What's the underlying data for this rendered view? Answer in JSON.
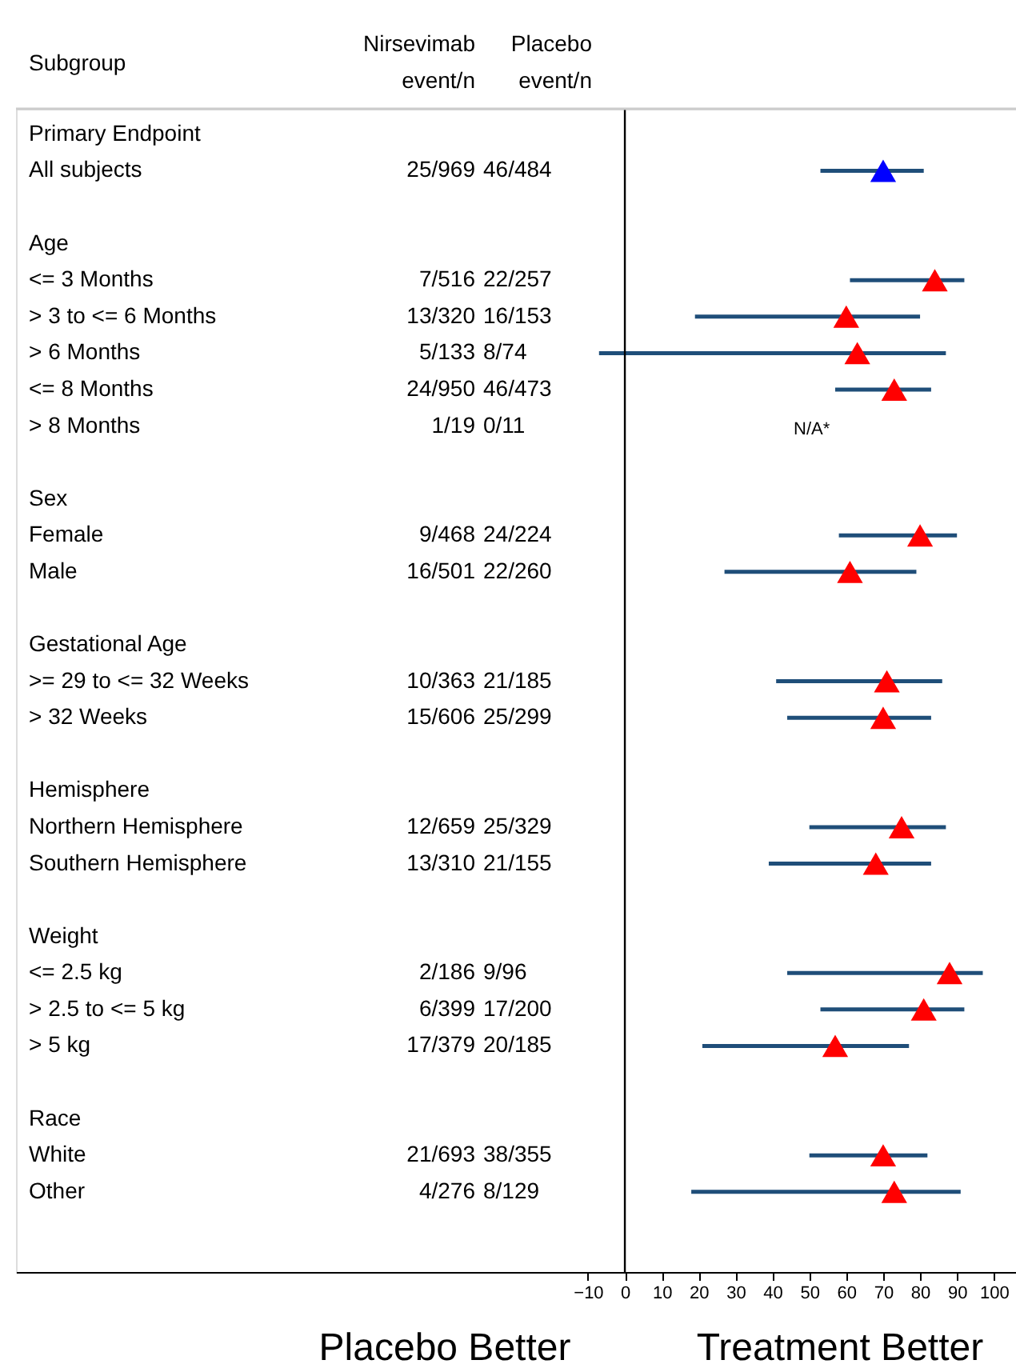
{
  "chart_data": {
    "type": "scatter",
    "orientation": "horizontal",
    "ylabel": "Subgroup",
    "categories": [
      "Primary Endpoint",
      "All subjects",
      null,
      "Age",
      "<= 3 Months",
      "> 3 to <= 6 Months",
      "> 6 Months",
      "<= 8 Months",
      "> 8 Months",
      null,
      "Sex",
      "Female",
      "Male",
      null,
      "Gestational Age",
      ">= 29 to <= 32 Weeks",
      "> 32 Weeks",
      null,
      "Hemisphere",
      "Northern Hemisphere",
      "Southern Hemisphere",
      null,
      "Weight",
      "<= 2.5 kg",
      "> 2.5 to <= 5 kg",
      "> 5 kg",
      null,
      "Race",
      "White",
      "Other"
    ],
    "values": [
      null,
      70,
      null,
      null,
      84,
      60,
      63,
      73,
      null,
      null,
      null,
      80,
      61,
      null,
      null,
      71,
      70,
      null,
      null,
      75,
      68,
      null,
      null,
      88,
      81,
      57,
      null,
      null,
      70,
      73
    ],
    "errors": [
      null,
      [
        53,
        81
      ],
      null,
      null,
      [
        61,
        92
      ],
      [
        19,
        80
      ],
      [
        -7,
        87
      ],
      [
        57,
        83
      ],
      null,
      null,
      null,
      [
        58,
        90
      ],
      [
        27,
        79
      ],
      null,
      null,
      [
        41,
        86
      ],
      [
        44,
        83
      ],
      null,
      null,
      [
        50,
        87
      ],
      [
        39,
        83
      ],
      null,
      null,
      [
        44,
        97
      ],
      [
        53,
        92
      ],
      [
        21,
        77
      ],
      null,
      null,
      [
        50,
        82
      ],
      [
        18,
        91
      ]
    ],
    "colors": [
      null,
      "#0000ff",
      null,
      null,
      "#ff0000",
      "#ff0000",
      "#ff0000",
      "#ff0000",
      null,
      null,
      null,
      "#ff0000",
      "#ff0000",
      null,
      null,
      "#ff0000",
      "#ff0000",
      null,
      null,
      "#ff0000",
      "#ff0000",
      null,
      null,
      "#ff0000",
      "#ff0000",
      "#ff0000",
      null,
      null,
      "#ff0000",
      "#ff0000"
    ],
    "marker": "triangle",
    "grid": false,
    "xlim": [
      -165,
      106
    ],
    "xticks": [
      -10,
      0,
      10,
      20,
      30,
      40,
      50,
      60,
      70,
      80,
      90,
      100
    ],
    "ref_lines": [
      {
        "axis": "x",
        "value": 0,
        "color": "#000000"
      }
    ],
    "annotations": [
      "Nirsevimab\nevent/n",
      "Placebo\nevent/n",
      "Placebo Better",
      "Treatment Better",
      "N/A*",
      "25/969",
      "46/484",
      "7/516",
      "22/257",
      "13/320",
      "16/153",
      "5/133",
      "8/74",
      "24/950",
      "46/473",
      "1/19",
      "0/11",
      "9/468",
      "24/224",
      "16/501",
      "22/260",
      "10/363",
      "21/185",
      "15/606",
      "25/299",
      "12/659",
      "25/329",
      "13/310",
      "21/155",
      "2/186",
      "9/96",
      "6/399",
      "17/200",
      "17/379",
      "20/185",
      "21/693",
      "38/355",
      "4/276",
      "8/129"
    ]
  }
}
